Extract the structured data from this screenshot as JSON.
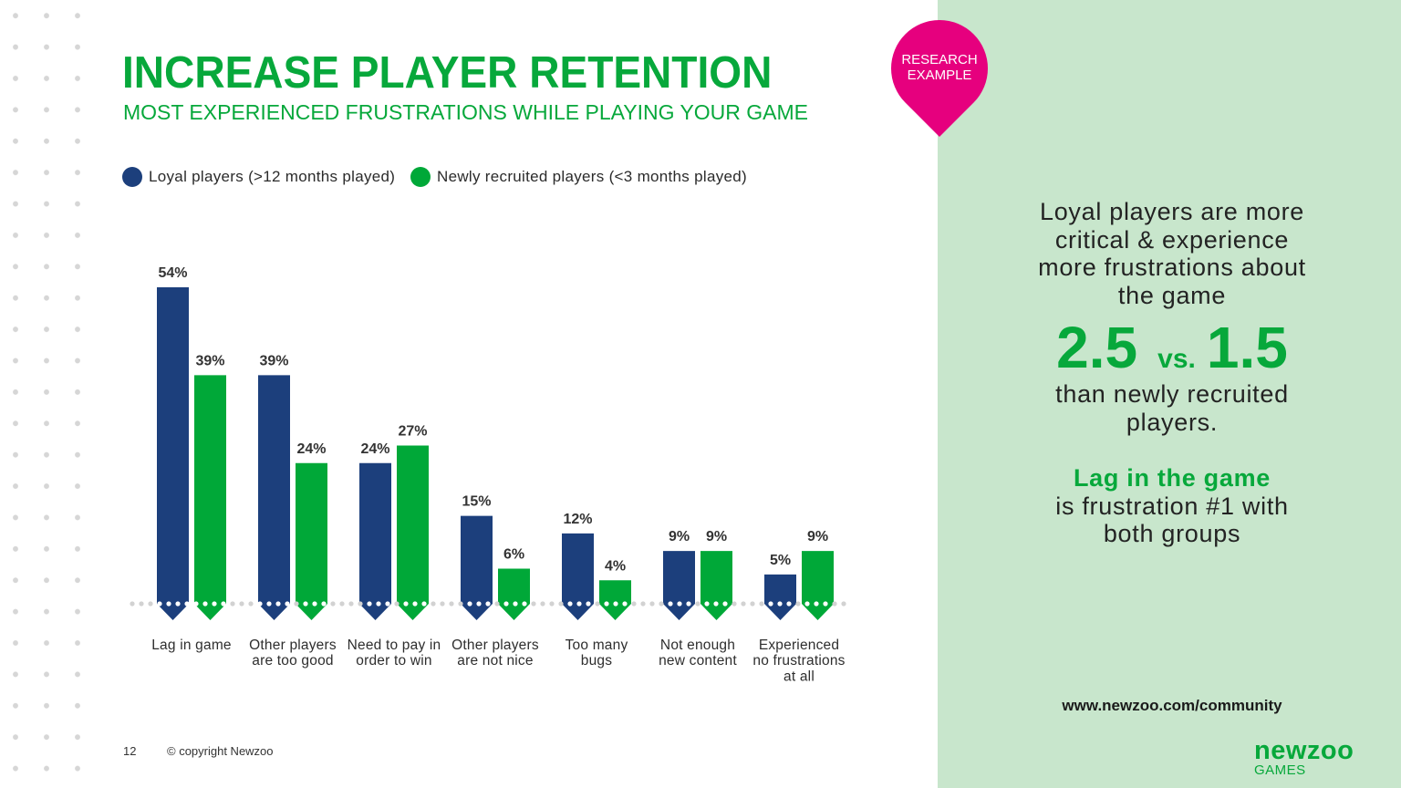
{
  "slide": {
    "title": "INCREASE PLAYER RETENTION",
    "subtitle": "MOST EXPERIENCED FRUSTRATIONS WHILE PLAYING YOUR GAME",
    "badge": {
      "line1": "RESEARCH",
      "line2": "EXAMPLE"
    },
    "page_number": "12",
    "copyright": "© copyright Newzoo"
  },
  "colors": {
    "brand_green": "#07a83b",
    "bar_green": "#00a838",
    "bar_blue": "#1c3f7c",
    "badge_pink": "#e6007e",
    "panel_bg": "#c8e6cc",
    "baseline_dots": "#d2d2d2"
  },
  "chart_data": {
    "type": "bar",
    "categories": [
      [
        "Lag in game"
      ],
      [
        "Other players",
        "are too good"
      ],
      [
        "Need to pay in",
        "order to win"
      ],
      [
        "Other players",
        "are not nice"
      ],
      [
        "Too many",
        "bugs"
      ],
      [
        "Not enough",
        "new content"
      ],
      [
        "Experienced",
        "no frustrations",
        "at all"
      ]
    ],
    "series": [
      {
        "name": "Loyal players (>12 months played)",
        "color": "#1c3f7c",
        "values": [
          54,
          39,
          24,
          15,
          12,
          9,
          5
        ]
      },
      {
        "name": "Newly recruited players (<3 months played)",
        "color": "#00a838",
        "values": [
          39,
          24,
          27,
          6,
          4,
          9,
          9
        ]
      }
    ],
    "value_suffix": "%",
    "grid": false,
    "legend": "top-left"
  },
  "insight": {
    "intro": [
      "Loyal players are more",
      "critical & experience",
      "more frustrations about",
      "the game"
    ],
    "stat_loyal": "2.5",
    "stat_vs": "vs.",
    "stat_new": "1.5",
    "outro": [
      "than newly recruited",
      "players."
    ],
    "highlight": "Lag in the game",
    "conclusion": [
      "is frustration #1 with",
      "both groups"
    ]
  },
  "footer": {
    "link": "www.newzoo.com/community",
    "logo_name": "newzoo",
    "logo_sub": "GAMES"
  }
}
